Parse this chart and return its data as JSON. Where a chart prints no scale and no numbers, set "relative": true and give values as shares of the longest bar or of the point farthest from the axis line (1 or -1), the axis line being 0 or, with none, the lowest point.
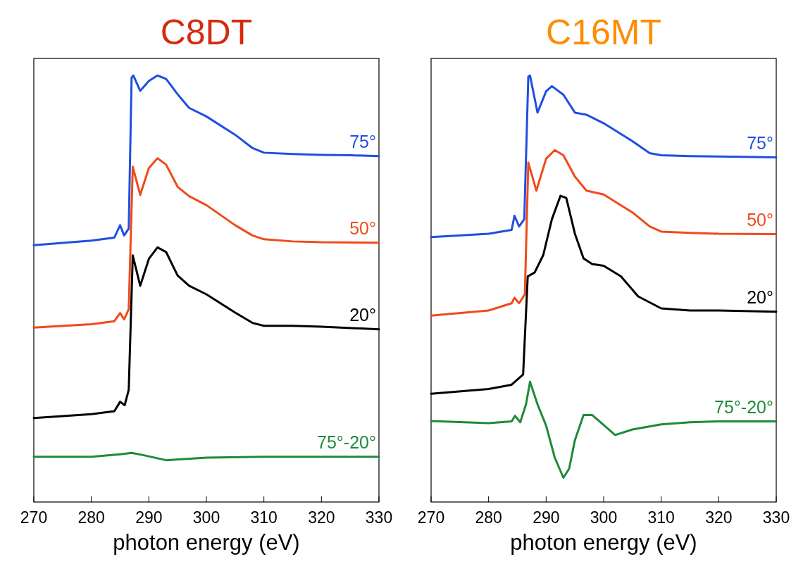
{
  "chart_data": [
    {
      "type": "line",
      "title": "C8DT",
      "xlabel": "photon energy (eV)",
      "relative": true,
      "xlim": [
        270,
        330
      ],
      "xticks": [
        270,
        280,
        290,
        300,
        310,
        320,
        330
      ],
      "series": [
        {
          "name": "75°",
          "color": "#1f4fe0",
          "x": [
            270,
            280,
            284,
            285,
            285.7,
            286.5,
            287,
            287.3,
            288.5,
            290,
            291.5,
            293,
            295,
            297,
            300,
            305,
            308,
            310,
            315,
            320,
            325,
            330
          ],
          "values": [
            0.602,
            0.613,
            0.62,
            0.649,
            0.625,
            0.641,
            0.995,
            1,
            0.964,
            0.987,
            1,
            0.992,
            0.956,
            0.924,
            0.904,
            0.861,
            0.83,
            0.819,
            0.816,
            0.814,
            0.813,
            0.811
          ]
        },
        {
          "name": "50°",
          "color": "#f04a1a",
          "x": [
            270,
            280,
            284,
            285,
            285.7,
            286.5,
            287.2,
            288.5,
            290,
            291.5,
            293,
            295,
            297,
            300,
            305,
            308,
            310,
            315,
            320,
            330
          ],
          "values": [
            0.409,
            0.417,
            0.424,
            0.443,
            0.428,
            0.452,
            0.786,
            0.72,
            0.783,
            0.806,
            0.791,
            0.739,
            0.717,
            0.696,
            0.649,
            0.625,
            0.616,
            0.611,
            0.609,
            0.608
          ]
        },
        {
          "name": "20°",
          "color": "#000000",
          "x": [
            270,
            280,
            284,
            285,
            285.8,
            286.5,
            287.2,
            288.5,
            290,
            291.5,
            293,
            295,
            297,
            300,
            305,
            308,
            310,
            315,
            320,
            330
          ],
          "values": [
            0.197,
            0.206,
            0.213,
            0.235,
            0.227,
            0.263,
            0.578,
            0.507,
            0.57,
            0.597,
            0.586,
            0.531,
            0.507,
            0.487,
            0.444,
            0.42,
            0.413,
            0.413,
            0.411,
            0.405
          ]
        },
        {
          "name": "75°-20°",
          "color": "#1e8a3a",
          "x": [
            270,
            280,
            285,
            287,
            289,
            293,
            300,
            310,
            320,
            330
          ],
          "values": [
            0.106,
            0.106,
            0.112,
            0.115,
            0.11,
            0.098,
            0.104,
            0.106,
            0.106,
            0.106
          ]
        }
      ]
    },
    {
      "type": "line",
      "title": "C16MT",
      "xlabel": "photon energy (eV)",
      "relative": true,
      "xlim": [
        270,
        330
      ],
      "xticks": [
        270,
        280,
        290,
        300,
        310,
        320,
        330
      ],
      "series": [
        {
          "name": "75°",
          "color": "#1f4fe0",
          "x": [
            270,
            280,
            284,
            284.5,
            285.3,
            286.2,
            286.9,
            287.2,
            288.5,
            290,
            291,
            293,
            295,
            297,
            300,
            305,
            308,
            310,
            315,
            320,
            330
          ],
          "values": [
            0.621,
            0.629,
            0.638,
            0.671,
            0.646,
            0.663,
            0.997,
            1,
            0.913,
            0.963,
            0.975,
            0.955,
            0.913,
            0.908,
            0.888,
            0.846,
            0.818,
            0.813,
            0.811,
            0.81,
            0.808
          ]
        },
        {
          "name": "50°",
          "color": "#f04a1a",
          "x": [
            270,
            280,
            284,
            284.5,
            285.3,
            286.3,
            286.9,
            288.3,
            290,
            291.5,
            293,
            295,
            297,
            300,
            305,
            308,
            310,
            315,
            320,
            330
          ],
          "values": [
            0.437,
            0.449,
            0.466,
            0.479,
            0.466,
            0.487,
            0.796,
            0.73,
            0.805,
            0.825,
            0.813,
            0.763,
            0.73,
            0.721,
            0.679,
            0.646,
            0.634,
            0.631,
            0.629,
            0.628
          ]
        },
        {
          "name": "20°",
          "color": "#000000",
          "x": [
            270,
            280,
            284,
            285,
            286,
            286.8,
            288,
            289.5,
            291,
            292.5,
            293.5,
            295,
            296.5,
            298,
            300,
            303,
            306,
            310,
            315,
            320,
            330
          ],
          "values": [
            0.254,
            0.265,
            0.275,
            0.287,
            0.299,
            0.529,
            0.538,
            0.579,
            0.663,
            0.718,
            0.713,
            0.629,
            0.571,
            0.558,
            0.554,
            0.529,
            0.482,
            0.454,
            0.449,
            0.449,
            0.446
          ]
        },
        {
          "name": "75°-20°",
          "color": "#1e8a3a",
          "x": [
            270,
            280,
            284,
            284.6,
            285.5,
            286.5,
            287.2,
            288.5,
            290,
            291.5,
            293,
            294,
            295,
            296.5,
            298,
            302,
            305,
            310,
            315,
            320,
            330
          ],
          "values": [
            0.19,
            0.185,
            0.189,
            0.202,
            0.187,
            0.229,
            0.282,
            0.229,
            0.179,
            0.104,
            0.057,
            0.078,
            0.145,
            0.204,
            0.204,
            0.157,
            0.17,
            0.182,
            0.187,
            0.189,
            0.189
          ]
        }
      ]
    }
  ]
}
